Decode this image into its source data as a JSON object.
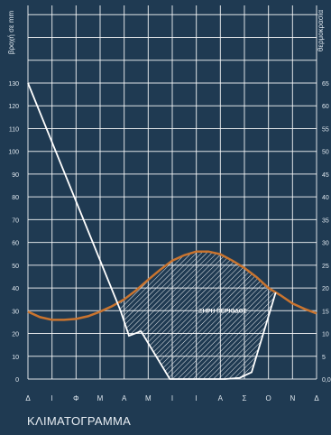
{
  "chart_data": {
    "type": "line",
    "title": "ΚΛΙΜΑΤΟΓΡΑΜΜΑ",
    "left_axis_label": "βροχή σε mm",
    "right_axis_label": "θερμοκρασία",
    "annotation": "ΞΗΡΗ ΠΕΡΙΟΔΟΣ",
    "categories": [
      "Δ",
      "Ι",
      "Φ",
      "Μ",
      "Α",
      "Μ",
      "Ι",
      "Ι",
      "Α",
      "Σ",
      "Ο",
      "Ν",
      "Δ"
    ],
    "left_ticks": [
      0,
      10,
      20,
      30,
      40,
      50,
      60,
      70,
      80,
      90,
      100,
      110,
      120,
      130
    ],
    "right_ticks": [
      "0,0",
      "5",
      "10",
      "15",
      "20",
      "25",
      "30",
      "35",
      "40",
      "45",
      "50",
      "55",
      "60",
      "65"
    ],
    "ylim_rain": [
      0,
      130
    ],
    "ylim_temp": [
      0,
      65
    ],
    "grid": true,
    "series": [
      {
        "kind": "rainfall",
        "x": [
          0,
          3.85,
          4.2,
          4.7,
          5.9,
          6.3,
          7.1,
          7.6,
          8.2,
          8.8,
          9.3,
          10.3
        ],
        "values": [
          130,
          30,
          19,
          21,
          0,
          0,
          0,
          0,
          0,
          0.5,
          3,
          38
        ]
      },
      {
        "kind": "temperature",
        "x": [
          0,
          0.5,
          1,
          1.5,
          2,
          2.5,
          3,
          3.5,
          4,
          4.5,
          5,
          5.5,
          6,
          6.5,
          7,
          7.5,
          8,
          8.5,
          9,
          9.5,
          10,
          10.5,
          11,
          11.5,
          12
        ],
        "values": [
          14.8,
          13.6,
          13.0,
          13.0,
          13.2,
          13.8,
          14.8,
          16.0,
          17.5,
          19.5,
          21.8,
          24.0,
          26.0,
          27.2,
          28.0,
          28.0,
          27.4,
          26.0,
          24.4,
          22.4,
          20.0,
          18.4,
          16.6,
          15.4,
          14.4
        ]
      }
    ],
    "colors": {
      "background": "#1f3a52",
      "grid": "#ffffff",
      "rainfall": "#ffffff",
      "temperature": "#c9742f",
      "hatch": "#ffffff",
      "labels": "#dfe7ee"
    }
  }
}
